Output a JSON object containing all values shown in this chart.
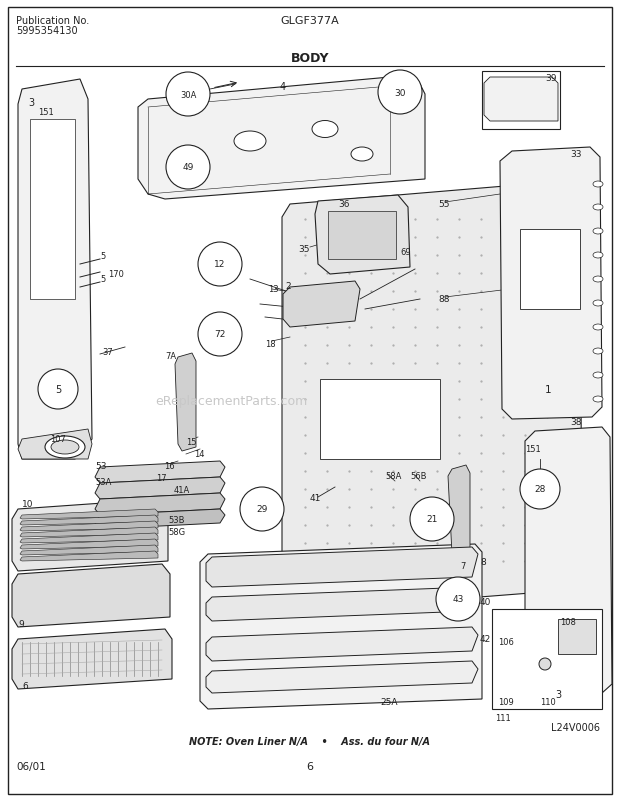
{
  "title": "GLGF377A",
  "subtitle": "BODY",
  "pub_no_label": "Publication No.",
  "pub_no": "5995354130",
  "date": "06/01",
  "page": "6",
  "diagram_id": "L24V0006",
  "note": "NOTE: Oven Liner N/A    •    Ass. du four N/A",
  "bg_color": "#ffffff",
  "line_color": "#222222",
  "light_fill": "#f2f2f2",
  "fig_width": 6.2,
  "fig_height": 8.03,
  "dpi": 100
}
